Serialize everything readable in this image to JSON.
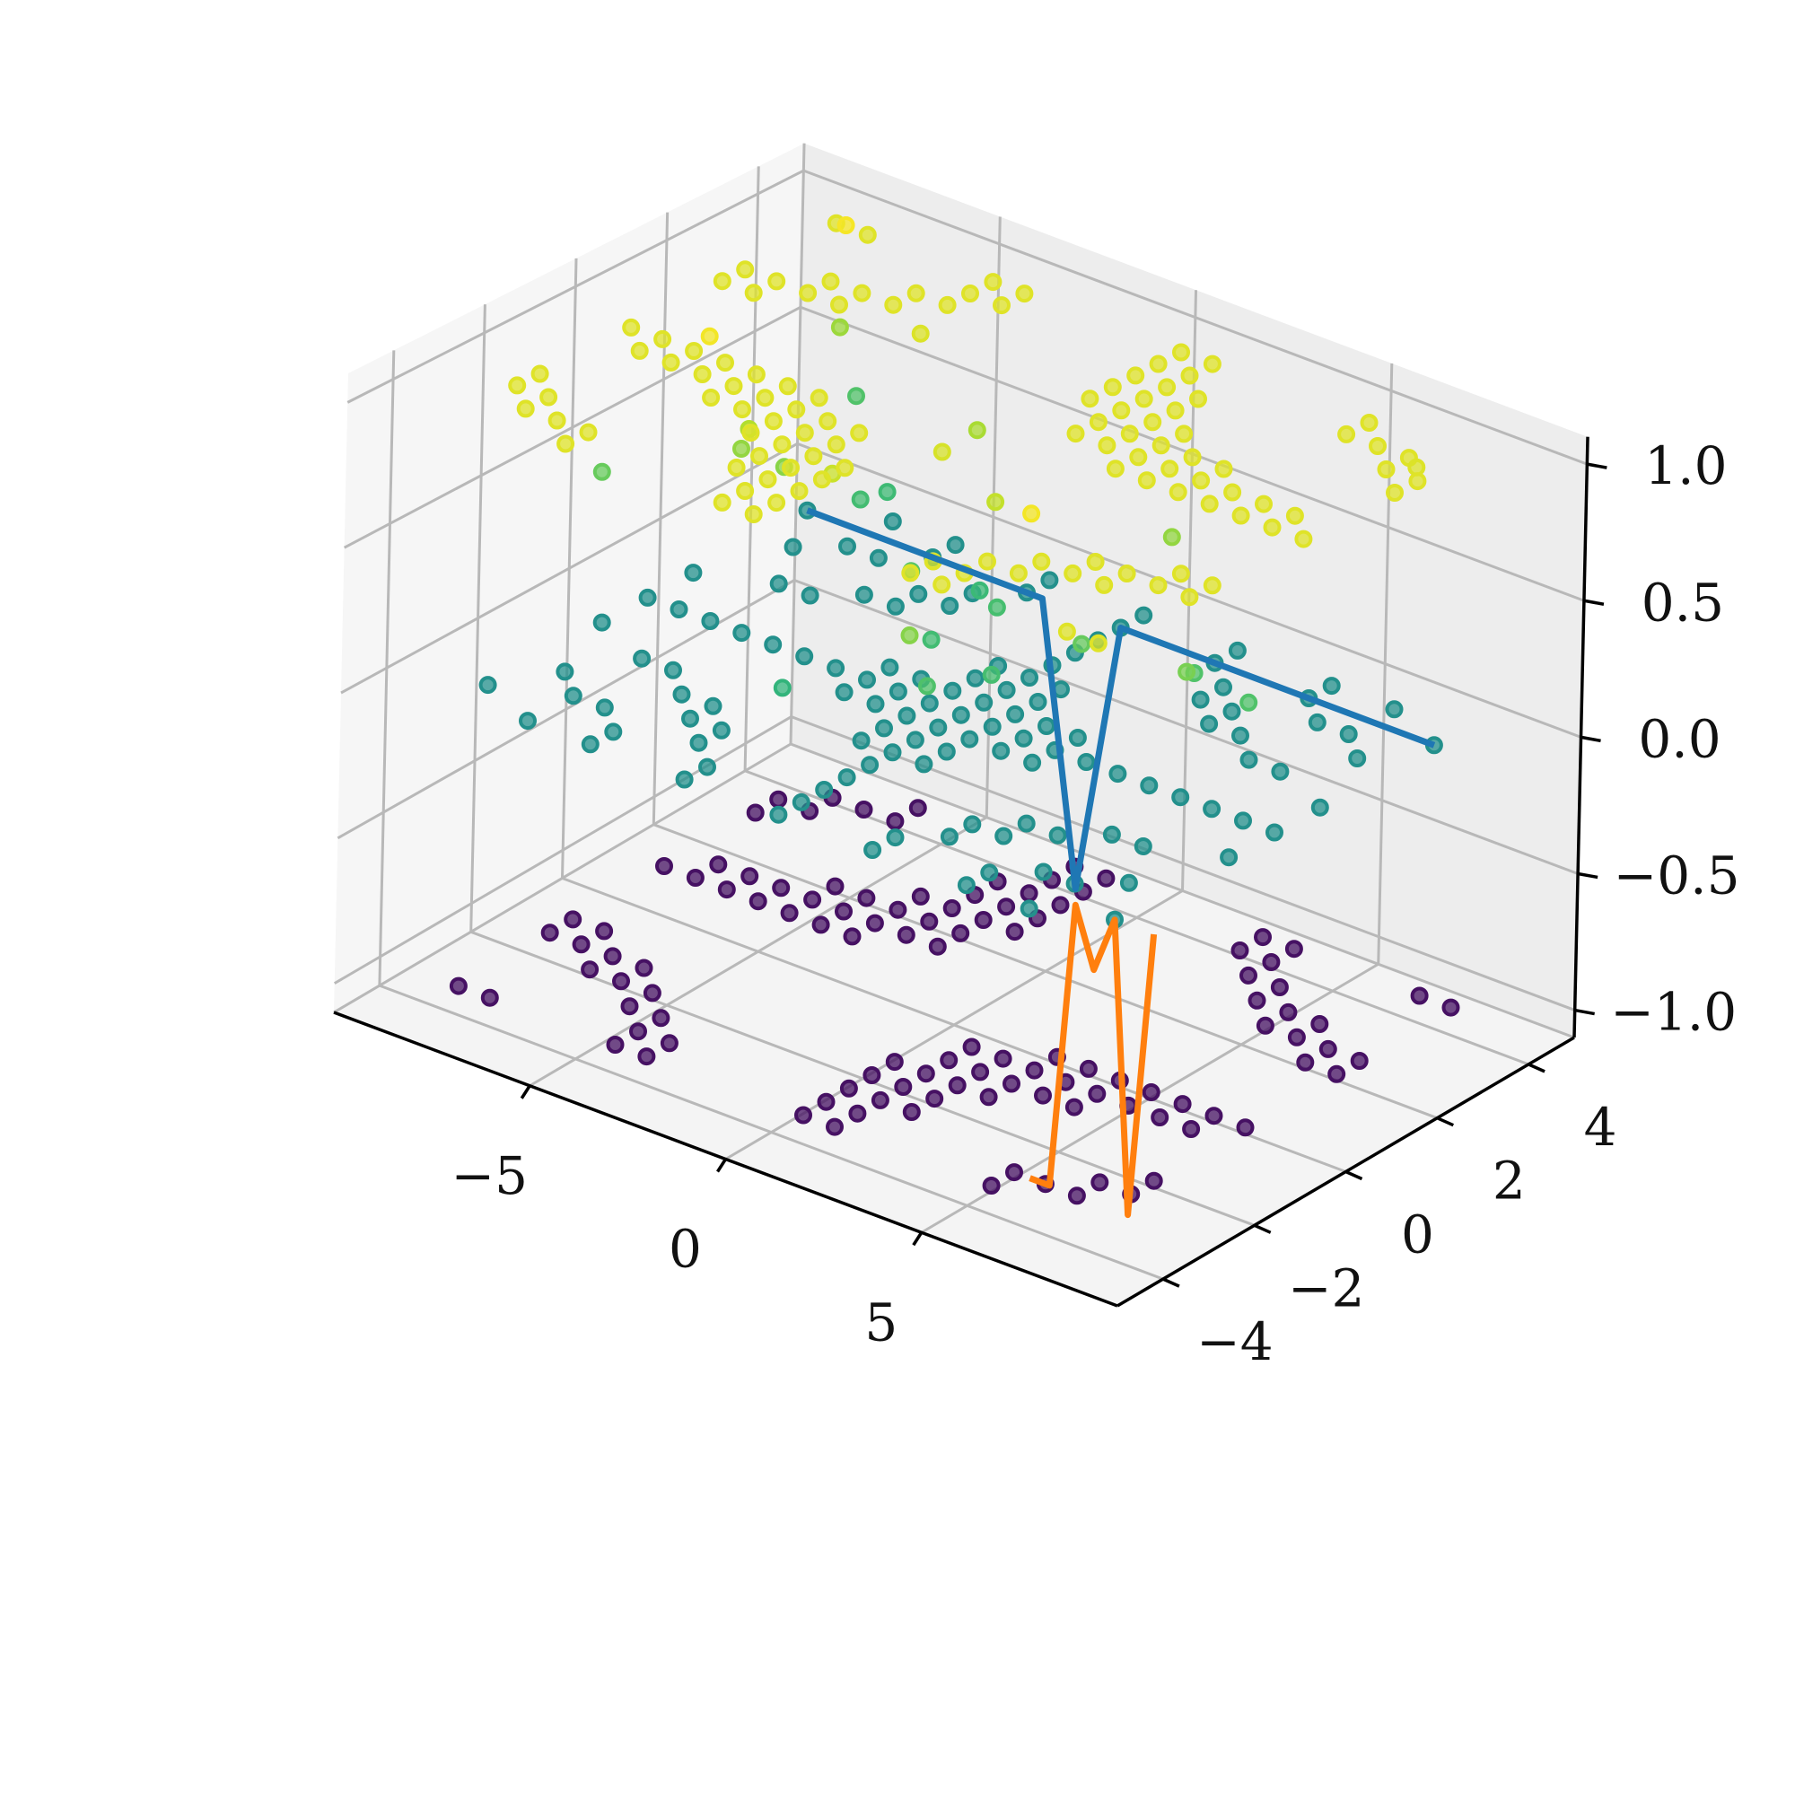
{
  "chart_data": {
    "type": "scatter3d",
    "title": "",
    "xlabel": "",
    "ylabel": "",
    "zlabel": "",
    "grid": true,
    "legend": "none",
    "xlim": [
      -10,
      10
    ],
    "ylim": [
      -5,
      5
    ],
    "zlim": [
      -1.1,
      1.1
    ],
    "x_ticks": [
      -5,
      0,
      5
    ],
    "y_ticks": [
      -4,
      -2,
      0,
      2,
      4
    ],
    "z_ticks": [
      -1.0,
      -0.5,
      0.0,
      0.5,
      1.0
    ],
    "x_tick_labels": [
      "−5",
      "0",
      "5"
    ],
    "y_tick_labels": [
      "−4",
      "−2",
      "0",
      "2",
      "4"
    ],
    "z_tick_labels": [
      "−1.0",
      "−0.5",
      "0.0",
      "0.5",
      "1.0"
    ],
    "scatter": {
      "colormap": "viridis",
      "color_by": "z",
      "note_data": "grid of points with z = round(sin(x*y)) plus scattered points",
      "x_range": [
        -8,
        8
      ],
      "y_range": [
        -4,
        4
      ],
      "grid_step_x": 0.8,
      "grid_step_y": 0.5
    },
    "lines": [
      {
        "color": "#1f77b4",
        "points": [
          [
            -8,
            3.5,
            0.0
          ],
          [
            -4,
            3.5,
            0.0
          ],
          [
            -2,
            3.5,
            0.0
          ],
          [
            -1,
            3.5,
            -1.0
          ],
          [
            0,
            3.5,
            0.0
          ],
          [
            1.5,
            3.5,
            0.0
          ],
          [
            8,
            3.5,
            0.0
          ]
        ]
      },
      {
        "color": "#ff7f0e",
        "points": [
          [
            6,
            -3.5,
            -1.0
          ],
          [
            6.5,
            -3.5,
            -1.0
          ],
          [
            7,
            -3.5,
            0.0
          ],
          [
            7.5,
            -3.5,
            -0.2
          ],
          [
            8,
            -3.5,
            0.0
          ],
          [
            8.5,
            -3.5,
            -1.0
          ],
          [
            9,
            -3.5,
            0.0
          ]
        ]
      }
    ],
    "colors": {
      "viridis_low": "#440154",
      "viridis_mid": "#21918c",
      "viridis_high": "#fde725"
    }
  }
}
